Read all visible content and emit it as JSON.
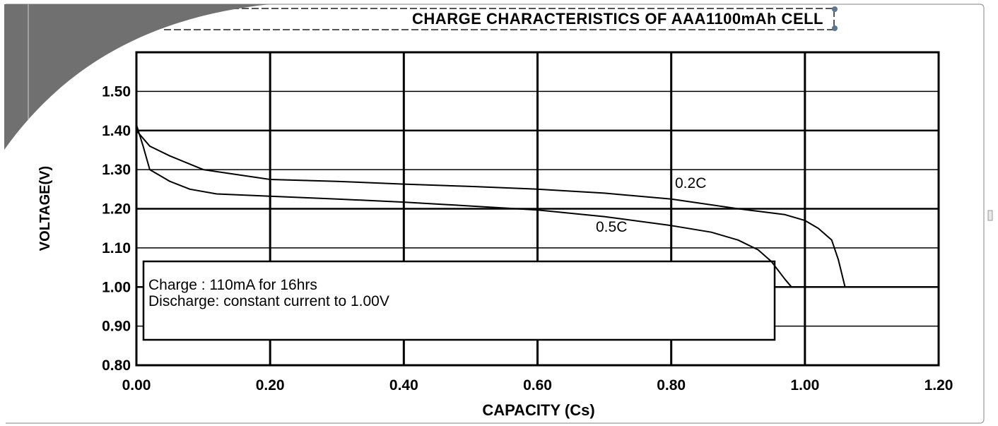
{
  "chart_data": {
    "type": "line",
    "title": "CHARGE CHARACTERISTICS  OF AAA1100mAh  CELL",
    "xlabel": "CAPACITY (Cs)",
    "ylabel": "VOLTAGE(V)",
    "xlim": [
      0.0,
      1.2
    ],
    "ylim": [
      0.8,
      1.6
    ],
    "x_ticks": [
      "0.00",
      "0.20",
      "0.40",
      "0.60",
      "0.80",
      "1.00",
      "1.20"
    ],
    "y_ticks": [
      "0.80",
      "0.90",
      "1.00",
      "1.10",
      "1.20",
      "1.30",
      "1.40",
      "1.50"
    ],
    "grid": true,
    "annotation": {
      "line1": "Charge : 110mA for 16hrs",
      "line2": "Discharge: constant current to 1.00V"
    },
    "series": [
      {
        "name": "0.2C",
        "points": [
          [
            0.0,
            1.4
          ],
          [
            0.02,
            1.36
          ],
          [
            0.05,
            1.335
          ],
          [
            0.1,
            1.3
          ],
          [
            0.2,
            1.275
          ],
          [
            0.3,
            1.27
          ],
          [
            0.4,
            1.263
          ],
          [
            0.5,
            1.257
          ],
          [
            0.6,
            1.25
          ],
          [
            0.7,
            1.24
          ],
          [
            0.8,
            1.225
          ],
          [
            0.9,
            1.2
          ],
          [
            0.97,
            1.185
          ],
          [
            1.0,
            1.17
          ],
          [
            1.02,
            1.15
          ],
          [
            1.04,
            1.12
          ],
          [
            1.05,
            1.07
          ],
          [
            1.06,
            1.0
          ]
        ]
      },
      {
        "name": "0.5C",
        "points": [
          [
            0.0,
            1.415
          ],
          [
            0.01,
            1.36
          ],
          [
            0.02,
            1.3
          ],
          [
            0.05,
            1.27
          ],
          [
            0.08,
            1.25
          ],
          [
            0.12,
            1.238
          ],
          [
            0.2,
            1.232
          ],
          [
            0.3,
            1.225
          ],
          [
            0.4,
            1.217
          ],
          [
            0.5,
            1.207
          ],
          [
            0.6,
            1.197
          ],
          [
            0.7,
            1.18
          ],
          [
            0.8,
            1.157
          ],
          [
            0.86,
            1.14
          ],
          [
            0.9,
            1.12
          ],
          [
            0.93,
            1.095
          ],
          [
            0.95,
            1.065
          ],
          [
            0.97,
            1.02
          ],
          [
            0.98,
            1.0
          ]
        ]
      }
    ]
  }
}
